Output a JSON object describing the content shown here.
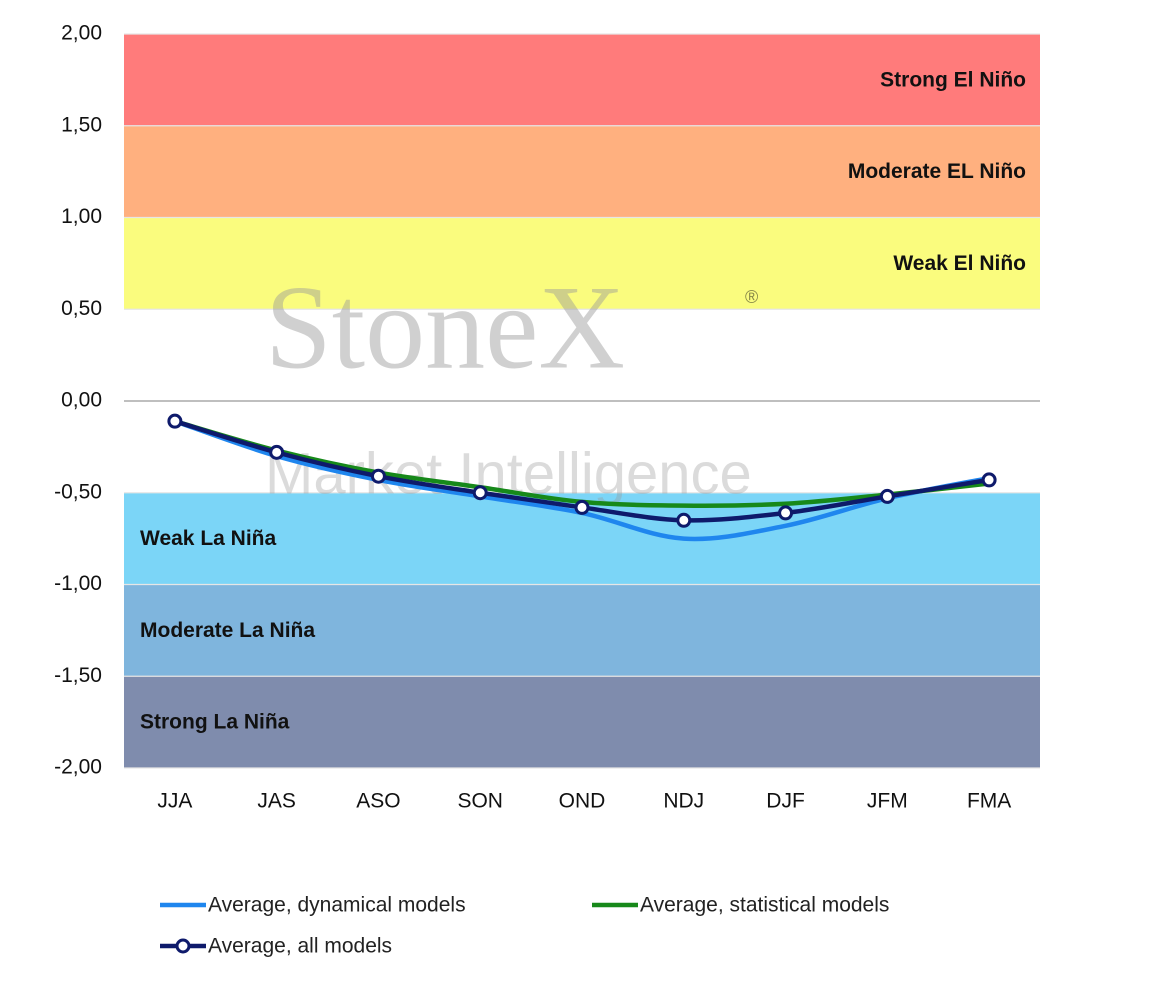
{
  "chart_data": {
    "type": "line",
    "categories": [
      "JJA",
      "JAS",
      "ASO",
      "SON",
      "OND",
      "NDJ",
      "DJF",
      "JFM",
      "FMA"
    ],
    "series": [
      {
        "name": "Average, dynamical models",
        "color": "#1f86ee",
        "values": [
          -0.11,
          -0.3,
          -0.43,
          -0.52,
          -0.61,
          -0.75,
          -0.68,
          -0.53,
          -0.42
        ]
      },
      {
        "name": "Average, statistical models",
        "color": "#17891a",
        "values": [
          -0.11,
          -0.27,
          -0.39,
          -0.47,
          -0.55,
          -0.57,
          -0.56,
          -0.51,
          -0.45
        ]
      },
      {
        "name": "Average, all models",
        "color": "#0e1a6b",
        "values": [
          -0.11,
          -0.28,
          -0.41,
          -0.5,
          -0.58,
          -0.65,
          -0.61,
          -0.52,
          -0.43
        ],
        "markers": true
      }
    ],
    "bands": [
      {
        "label": "Strong El Niño",
        "from": 1.5,
        "to": 2.0,
        "color": "#ff7b7b"
      },
      {
        "label": "Moderate EL Niño",
        "from": 1.0,
        "to": 1.5,
        "color": "#ffb07f"
      },
      {
        "label": "Weak El Niño",
        "from": 0.5,
        "to": 1.0,
        "color": "#fafc7e"
      },
      {
        "label": "Weak La Niña",
        "from": -1.0,
        "to": -0.5,
        "color": "#7bd5f7"
      },
      {
        "label": "Moderate La Niña",
        "from": -1.5,
        "to": -1.0,
        "color": "#7fb5dd"
      },
      {
        "label": "Strong La Niña",
        "from": -2.0,
        "to": -1.5,
        "color": "#7f8cad"
      }
    ],
    "ylim": [
      -2.0,
      2.0
    ],
    "yticks": [
      {
        "value": -2.0,
        "label": "-2,00"
      },
      {
        "value": -1.5,
        "label": "-1,50"
      },
      {
        "value": -1.0,
        "label": "-1,00"
      },
      {
        "value": -0.5,
        "label": "-0,50"
      },
      {
        "value": 0.0,
        "label": "0,00"
      },
      {
        "value": 0.5,
        "label": "0,50"
      },
      {
        "value": 1.0,
        "label": "1,00"
      },
      {
        "value": 1.5,
        "label": "1,50"
      },
      {
        "value": 2.0,
        "label": "2,00"
      }
    ],
    "watermark": [
      "StoneX",
      "®",
      "Market Intelligence"
    ]
  }
}
